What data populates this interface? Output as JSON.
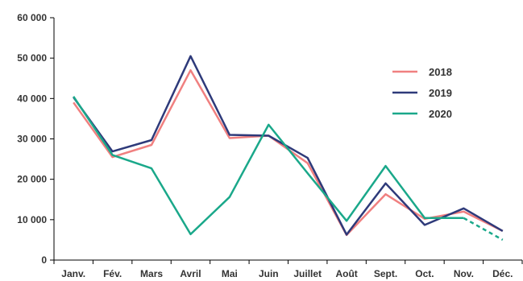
{
  "chart_data": {
    "type": "line",
    "categories": [
      "Janv.",
      "Fév.",
      "Mars",
      "Avril",
      "Mai",
      "Juin",
      "Juillet",
      "Août",
      "Sept.",
      "Oct.",
      "Nov.",
      "Déc."
    ],
    "y_ticks": [
      "0",
      "10 000",
      "20 000",
      "30 000",
      "40 000",
      "50 000",
      "60 000"
    ],
    "ylim": [
      0,
      60000
    ],
    "grid": false,
    "legend_position": "top-right",
    "series": [
      {
        "name": "2018",
        "color": "#f08080",
        "values": [
          39000,
          25500,
          28500,
          47000,
          30200,
          30800,
          24000,
          6200,
          16300,
          10200,
          12000,
          7200
        ]
      },
      {
        "name": "2019",
        "color": "#2e3a7a",
        "values": [
          40300,
          26900,
          29700,
          50500,
          31000,
          30800,
          25300,
          6300,
          19000,
          8700,
          12800,
          7200
        ]
      },
      {
        "name": "2020",
        "color": "#1aa88a",
        "values": [
          40500,
          26000,
          22700,
          6400,
          15600,
          33500,
          21500,
          9700,
          23300,
          10400,
          10400,
          5000
        ],
        "dashed_from_index": 10
      }
    ]
  }
}
